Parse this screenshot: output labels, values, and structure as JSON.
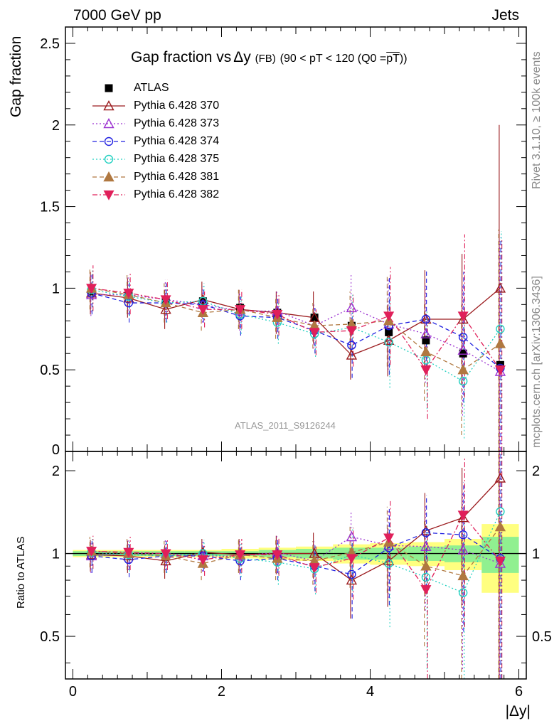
{
  "header": {
    "left": "7000 GeV pp",
    "right": "Jets",
    "title_main": "Gap fraction vs",
    "title_delta": "Δy",
    "title_small": "(FB)",
    "title_tail": "(90 < pT < 120 (Q0 =",
    "title_pt": "pT",
    "title_close": "))",
    "watermark": "ATLAS_2011_S9126244",
    "side_top": "Rivet 3.1.10, ≥ 100k events",
    "side_bottom": "mcplots.cern.ch [arXiv:1306.3436]",
    "ylabel_top": "Gap fraction",
    "ylabel_bottom": "Ratio to ATLAS",
    "xlabel": "|Δy|"
  },
  "colors": {
    "ATLAS": "#000000",
    "p370": "#9b1b1e",
    "p373": "#9b30d0",
    "p374": "#2020e0",
    "p375": "#20d0c0",
    "p381": "#b07840",
    "p382": "#e0205a",
    "band_yellow": "#ffff80",
    "band_green": "#90f090"
  },
  "chart_data": [
    {
      "type": "scatter",
      "xlabel": "|Δy|",
      "ylabel": "Gap fraction",
      "xlim": [
        -0.1,
        6.1
      ],
      "ylim": [
        0,
        2.6
      ],
      "x_ticks": [
        "0",
        "2",
        "4",
        "6"
      ],
      "y_ticks": [
        "0.5",
        "1",
        "1.5",
        "2",
        "2.5"
      ],
      "x": [
        0.25,
        0.75,
        1.25,
        1.75,
        2.25,
        2.75,
        3.25,
        3.75,
        4.25,
        4.75,
        5.25,
        5.75
      ],
      "series": [
        {
          "name": "ATLAS",
          "style": "square-filled",
          "values": [
            0.98,
            0.96,
            0.93,
            0.92,
            0.88,
            0.85,
            0.82,
            0.77,
            0.73,
            0.68,
            0.6,
            0.53
          ]
        },
        {
          "name": "Pythia 6.428 370",
          "style": "triangle-open solid",
          "values": [
            0.97,
            0.94,
            0.87,
            0.93,
            0.87,
            0.85,
            0.82,
            0.59,
            0.68,
            0.81,
            0.81,
            1.0
          ],
          "errors": [
            0.13,
            0.12,
            0.12,
            0.11,
            0.12,
            0.13,
            0.16,
            0.15,
            0.22,
            0.3,
            0.4,
            1.0
          ]
        },
        {
          "name": "Pythia 6.428 373",
          "style": "triangle-open dotted",
          "values": [
            0.96,
            0.96,
            0.93,
            0.9,
            0.86,
            0.86,
            0.77,
            0.88,
            0.78,
            0.72,
            0.62,
            0.49
          ],
          "errors": [
            0.13,
            0.12,
            0.12,
            0.11,
            0.12,
            0.13,
            0.14,
            0.2,
            0.28,
            0.3,
            0.4,
            0.8
          ]
        },
        {
          "name": "Pythia 6.428 374",
          "style": "circle-open dashed",
          "values": [
            0.97,
            0.91,
            0.91,
            0.9,
            0.83,
            0.82,
            0.74,
            0.65,
            0.77,
            0.81,
            0.7,
            0.51
          ],
          "errors": [
            0.13,
            0.12,
            0.12,
            0.11,
            0.12,
            0.13,
            0.14,
            0.2,
            0.3,
            0.3,
            0.4,
            0.8
          ]
        },
        {
          "name": "Pythia 6.428 375",
          "style": "circle-open dotted",
          "values": [
            0.99,
            0.95,
            0.91,
            0.92,
            0.84,
            0.79,
            0.72,
            0.76,
            0.67,
            0.56,
            0.43,
            0.75
          ],
          "errors": [
            0.13,
            0.12,
            0.12,
            0.11,
            0.12,
            0.13,
            0.14,
            0.2,
            0.28,
            0.3,
            0.35,
            0.6
          ]
        },
        {
          "name": "Pythia 6.428 381",
          "style": "triangle-filled dashed",
          "values": [
            1.0,
            0.96,
            0.91,
            0.85,
            0.87,
            0.82,
            0.77,
            0.78,
            0.8,
            0.61,
            0.5,
            0.66
          ],
          "errors": [
            0.13,
            0.12,
            0.12,
            0.11,
            0.12,
            0.13,
            0.14,
            0.2,
            0.28,
            0.3,
            0.4,
            0.7
          ]
        },
        {
          "name": "Pythia 6.428 382",
          "style": "triangle-down-filled dashdot",
          "values": [
            1.0,
            0.97,
            0.93,
            0.87,
            0.87,
            0.84,
            0.73,
            0.74,
            0.83,
            0.5,
            0.83,
            0.5
          ],
          "errors": [
            0.14,
            0.13,
            0.12,
            0.11,
            0.12,
            0.13,
            0.14,
            0.22,
            0.3,
            0.3,
            0.5,
            0.8
          ]
        }
      ]
    },
    {
      "type": "scatter",
      "xlabel": "|Δy|",
      "ylabel": "Ratio to ATLAS",
      "xlim": [
        -0.1,
        6.1
      ],
      "ylim": [
        0.35,
        2.35
      ],
      "y_ticks": [
        "0.5",
        "1",
        "2"
      ],
      "x": [
        0.25,
        0.75,
        1.25,
        1.75,
        2.25,
        2.75,
        3.25,
        3.75,
        4.25,
        4.75,
        5.25,
        5.75
      ],
      "band_green": [
        0.02,
        0.02,
        0.02,
        0.02,
        0.02,
        0.03,
        0.04,
        0.05,
        0.05,
        0.06,
        0.07,
        0.15
      ],
      "band_yellow": [
        0.03,
        0.03,
        0.03,
        0.03,
        0.04,
        0.05,
        0.06,
        0.08,
        0.09,
        0.1,
        0.13,
        0.28
      ],
      "series": [
        {
          "name": "Pythia 6.428 370",
          "values": [
            0.99,
            0.98,
            0.94,
            1.01,
            0.99,
            1.0,
            1.0,
            0.8,
            0.94,
            1.21,
            1.35,
            1.88
          ],
          "errors": [
            0.13,
            0.13,
            0.13,
            0.12,
            0.14,
            0.16,
            0.19,
            0.22,
            0.3,
            0.45,
            0.7,
            1.6
          ]
        },
        {
          "name": "Pythia 6.428 373",
          "values": [
            0.98,
            1.0,
            1.0,
            0.98,
            0.98,
            1.01,
            0.94,
            1.15,
            1.07,
            1.06,
            1.03,
            0.92
          ],
          "errors": [
            0.13,
            0.13,
            0.13,
            0.12,
            0.14,
            0.16,
            0.17,
            0.26,
            0.38,
            0.44,
            0.65,
            1.5
          ]
        },
        {
          "name": "Pythia 6.428 374",
          "values": [
            0.98,
            0.95,
            0.98,
            0.98,
            0.94,
            0.96,
            0.9,
            0.84,
            1.05,
            1.19,
            1.17,
            0.96
          ],
          "errors": [
            0.13,
            0.13,
            0.13,
            0.12,
            0.14,
            0.16,
            0.17,
            0.26,
            0.4,
            0.44,
            0.65,
            1.5
          ]
        },
        {
          "name": "Pythia 6.428 375",
          "values": [
            1.01,
            0.99,
            0.98,
            1.0,
            0.96,
            0.93,
            0.88,
            0.99,
            0.92,
            0.82,
            0.72,
            1.42
          ],
          "errors": [
            0.13,
            0.13,
            0.13,
            0.12,
            0.14,
            0.16,
            0.17,
            0.26,
            0.38,
            0.44,
            0.6,
            1.2
          ]
        },
        {
          "name": "Pythia 6.428 381",
          "values": [
            1.02,
            1.0,
            0.98,
            0.92,
            0.99,
            0.96,
            0.94,
            1.01,
            1.1,
            0.9,
            0.83,
            1.25
          ],
          "errors": [
            0.13,
            0.13,
            0.13,
            0.12,
            0.14,
            0.16,
            0.17,
            0.26,
            0.38,
            0.44,
            0.65,
            1.3
          ]
        },
        {
          "name": "Pythia 6.428 382",
          "values": [
            1.02,
            1.01,
            1.0,
            0.95,
            0.99,
            0.99,
            0.89,
            0.96,
            1.14,
            0.74,
            1.38,
            0.94
          ],
          "errors": [
            0.14,
            0.14,
            0.13,
            0.12,
            0.14,
            0.16,
            0.17,
            0.28,
            0.41,
            0.44,
            0.84,
            1.5
          ]
        }
      ]
    }
  ]
}
